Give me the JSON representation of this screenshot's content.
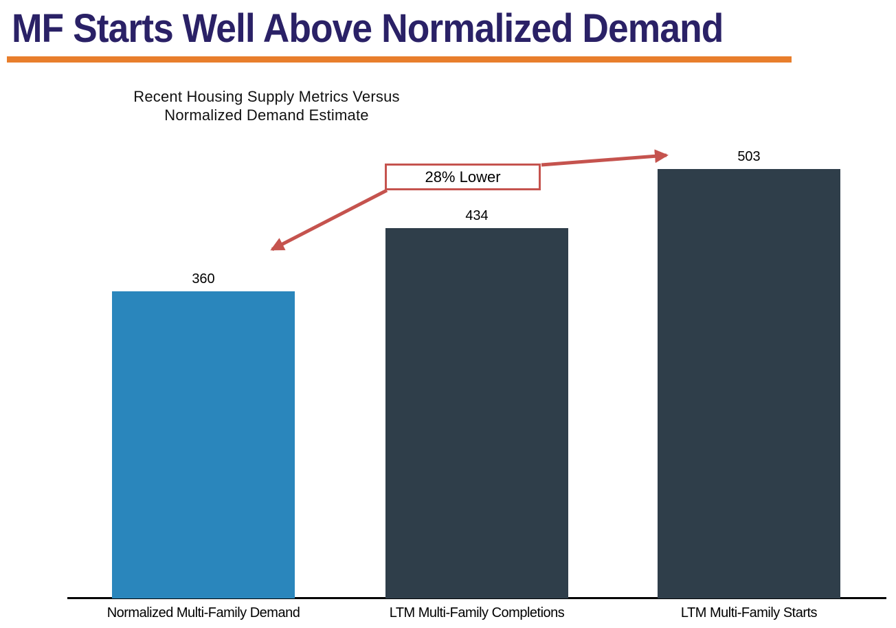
{
  "slide": {
    "title": "MF Starts Well Above Normalized Demand",
    "title_color": "#2A2166",
    "accent_rule_color": "#E87E2C"
  },
  "chart_data": {
    "type": "bar",
    "title": "Recent Housing Supply Metrics Versus\nNormalized Demand Estimate",
    "categories": [
      "Normalized Multi-Family Demand",
      "LTM Multi-Family Completions",
      "LTM Multi-Family Starts"
    ],
    "values": [
      360,
      434,
      503
    ],
    "bar_colors": [
      "#2A86BC",
      "#2F3E4A",
      "#2F3E4A"
    ],
    "xlabel": "",
    "ylabel": "",
    "ylim": [
      0,
      540
    ],
    "grid": false,
    "legend": "none",
    "annotation": {
      "label": "28% Lower",
      "color": "#C5534E",
      "compares": [
        "Normalized Multi-Family Demand",
        "LTM Multi-Family Starts"
      ]
    }
  }
}
